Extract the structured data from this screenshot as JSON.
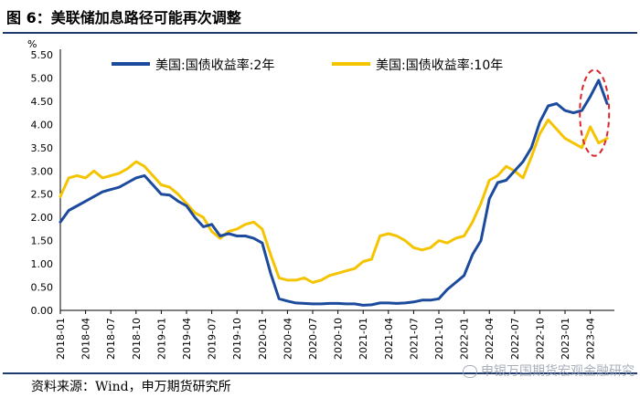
{
  "figure": {
    "title": "图 6：美联储加息路径可能再次调整",
    "source": "资料来源：Wind，申万期货研究所",
    "watermark": "申银万国期货宏观金融研究"
  },
  "colors": {
    "series_2y": "#1c4a9c",
    "series_10y": "#f5c400",
    "annotation": "#d9262b",
    "rule": "#1f3a6e"
  },
  "chart_data": {
    "type": "line",
    "title": "美联储加息路径可能再次调整",
    "xlabel": "",
    "ylabel": "%",
    "ylim": [
      0,
      5.5
    ],
    "yticks": [
      0,
      0.5,
      1.0,
      1.5,
      2.0,
      2.5,
      3.0,
      3.5,
      4.0,
      4.5,
      5.0,
      5.5
    ],
    "ytick_labels": [
      "0.00",
      "0.50",
      "1.00",
      "1.50",
      "2.00",
      "2.50",
      "3.00",
      "3.50",
      "4.00",
      "4.50",
      "5.00",
      "5.50"
    ],
    "x_tick_labels": [
      "2018-01",
      "2018-04",
      "2018-07",
      "2018-10",
      "2019-01",
      "2019-04",
      "2019-07",
      "2019-10",
      "2020-01",
      "2020-04",
      "2020-07",
      "2020-10",
      "2021-01",
      "2021-04",
      "2021-07",
      "2021-10",
      "2022-01",
      "2022-04",
      "2022-07",
      "2022-10",
      "2023-01",
      "2023-04"
    ],
    "x_months": [
      0,
      1,
      2,
      3,
      4,
      5,
      6,
      7,
      8,
      9,
      10,
      11,
      12,
      13,
      14,
      15,
      16,
      17,
      18,
      19,
      20,
      21,
      22,
      23,
      24,
      25,
      26,
      27,
      28,
      29,
      30,
      31,
      32,
      33,
      34,
      35,
      36,
      37,
      38,
      39,
      40,
      41,
      42,
      43,
      44,
      45,
      46,
      47,
      48,
      49,
      50,
      51,
      52,
      53,
      54,
      55,
      56,
      57,
      58,
      59,
      60,
      61,
      62,
      63,
      64,
      65
    ],
    "x_unit": "months since 2018-01",
    "series": [
      {
        "name": "美国:国债收益率:2年",
        "color": "#1c4a9c",
        "values": [
          1.9,
          2.15,
          2.25,
          2.35,
          2.45,
          2.55,
          2.6,
          2.65,
          2.75,
          2.85,
          2.9,
          2.7,
          2.5,
          2.48,
          2.35,
          2.25,
          2.0,
          1.8,
          1.85,
          1.6,
          1.65,
          1.6,
          1.6,
          1.55,
          1.45,
          0.8,
          0.25,
          0.2,
          0.16,
          0.15,
          0.14,
          0.14,
          0.15,
          0.15,
          0.14,
          0.14,
          0.11,
          0.12,
          0.16,
          0.16,
          0.15,
          0.16,
          0.18,
          0.22,
          0.22,
          0.25,
          0.45,
          0.6,
          0.75,
          1.2,
          1.5,
          2.4,
          2.75,
          2.8,
          3.0,
          3.2,
          3.5,
          4.05,
          4.4,
          4.45,
          4.3,
          4.25,
          4.3,
          4.6,
          4.95,
          4.45
        ]
      },
      {
        "name": "美国:国债收益率:10年",
        "color": "#f5c400",
        "values": [
          2.45,
          2.85,
          2.9,
          2.85,
          3.0,
          2.85,
          2.9,
          2.95,
          3.05,
          3.2,
          3.1,
          2.9,
          2.7,
          2.65,
          2.5,
          2.3,
          2.1,
          2.0,
          1.7,
          1.55,
          1.7,
          1.75,
          1.85,
          1.9,
          1.75,
          1.2,
          0.7,
          0.65,
          0.65,
          0.7,
          0.6,
          0.65,
          0.75,
          0.8,
          0.85,
          0.9,
          1.05,
          1.1,
          1.6,
          1.65,
          1.6,
          1.5,
          1.35,
          1.3,
          1.35,
          1.5,
          1.45,
          1.55,
          1.6,
          1.9,
          2.3,
          2.8,
          2.9,
          3.1,
          3.0,
          2.85,
          3.3,
          3.8,
          4.1,
          3.9,
          3.7,
          3.6,
          3.5,
          3.95,
          3.6,
          3.7
        ]
      }
    ],
    "legend": "top",
    "annotations": [
      {
        "type": "ellipse",
        "style": "dashed",
        "color": "#d9262b",
        "around": "2023-02 to 2023-04"
      }
    ]
  }
}
